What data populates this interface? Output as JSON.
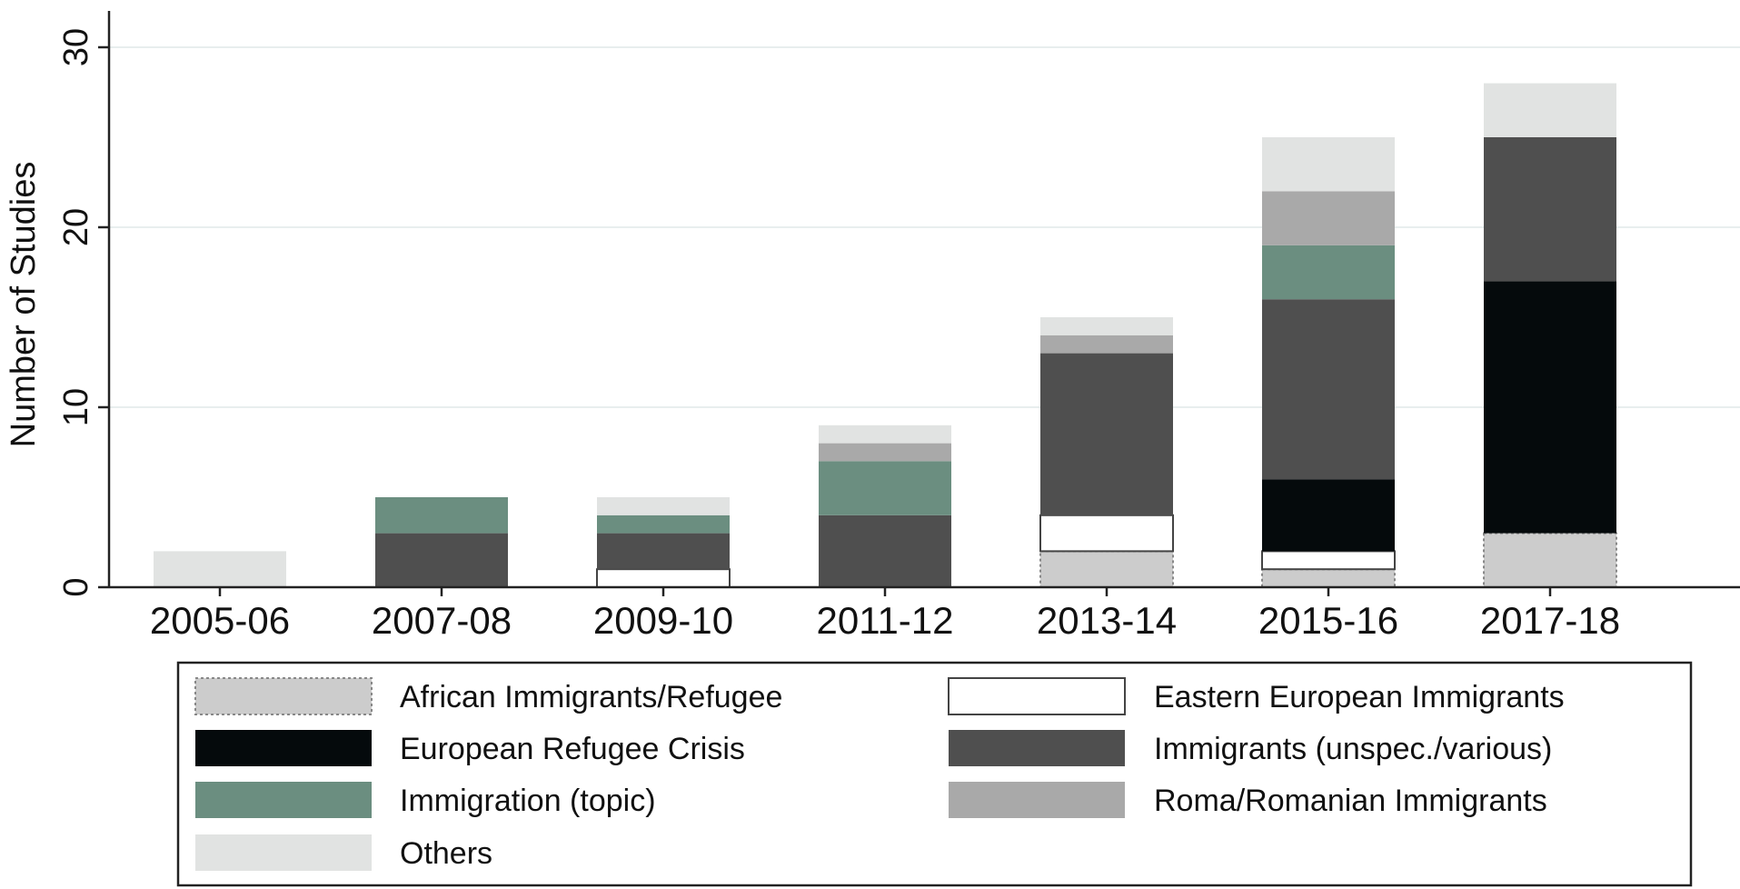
{
  "chart_data": {
    "type": "bar",
    "stacked": true,
    "title": "",
    "xlabel": "",
    "ylabel": "Number of Studies",
    "ylim": [
      0,
      32
    ],
    "yticks": [
      0,
      10,
      20,
      30
    ],
    "grid": true,
    "legend_position": "bottom",
    "categories": [
      "2005-06",
      "2007-08",
      "2009-10",
      "2011-12",
      "2013-14",
      "2015-16",
      "2017-18"
    ],
    "series": [
      {
        "name": "African Immigrants/Refugee",
        "color": "#cccccc",
        "stroke": "#888888",
        "dashed": true,
        "values": [
          0,
          0,
          0,
          0,
          2,
          1,
          3
        ]
      },
      {
        "name": "Eastern European Immigrants",
        "color": "#ffffff",
        "stroke": "#444444",
        "dashed": false,
        "values": [
          0,
          0,
          1,
          0,
          2,
          1,
          0
        ]
      },
      {
        "name": "European Refugee Crisis",
        "color": "#050a0c",
        "stroke": "",
        "dashed": false,
        "values": [
          0,
          0,
          0,
          0,
          0,
          4,
          14
        ]
      },
      {
        "name": "Immigrants (unspec./various)",
        "color": "#4f4f4f",
        "stroke": "",
        "dashed": false,
        "values": [
          0,
          3,
          2,
          4,
          9,
          10,
          8
        ]
      },
      {
        "name": "Immigration (topic)",
        "color": "#6b8e80",
        "stroke": "",
        "dashed": false,
        "values": [
          0,
          2,
          1,
          3,
          0,
          3,
          0
        ]
      },
      {
        "name": "Roma/Romanian Immigrants",
        "color": "#a9a9a9",
        "stroke": "",
        "dashed": false,
        "values": [
          0,
          0,
          0,
          1,
          1,
          3,
          0
        ]
      },
      {
        "name": "Others",
        "color": "#e1e3e2",
        "stroke": "",
        "dashed": false,
        "values": [
          2,
          0,
          1,
          1,
          1,
          3,
          3
        ]
      }
    ]
  }
}
